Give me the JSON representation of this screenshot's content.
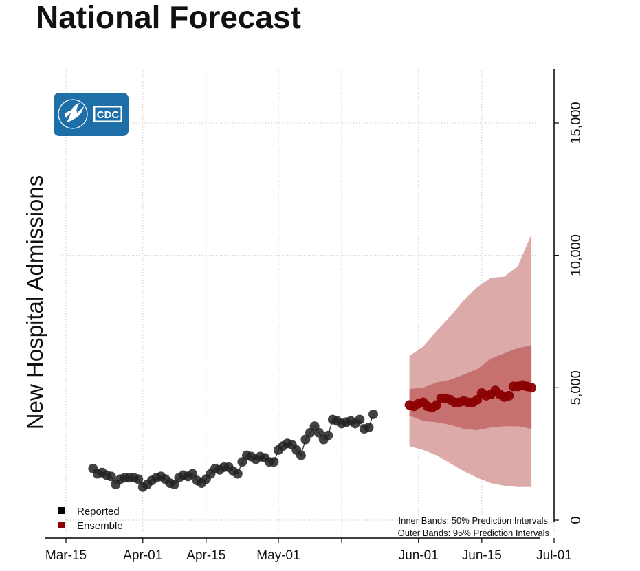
{
  "chart_data": {
    "type": "line",
    "title": "National Forecast",
    "xlabel": "",
    "ylabel": "New Hospital Admissions",
    "x_ticks": [
      "Mar-15",
      "Apr-01",
      "Apr-15",
      "May-01",
      "Jun-01",
      "Jun-15",
      "Jul-01"
    ],
    "y_ticks": [
      "0",
      "5,000",
      "10,000",
      "15,000"
    ],
    "y_axis_position": "right",
    "ylim": [
      0,
      17000
    ],
    "xlim": [
      "2020-03-15",
      "2020-07-01"
    ],
    "grid": true,
    "legend_placement": "bottom-left",
    "legend": [
      {
        "label": "Reported",
        "color": "#000000"
      },
      {
        "label": "Ensemble",
        "color": "#8b0000"
      }
    ],
    "annotations": [
      "Inner Bands: 50% Prediction Intervals",
      "Outer Bands: 95% Prediction Intervals"
    ],
    "logo_text": "CDC",
    "series": [
      {
        "name": "Reported",
        "color": "#000000",
        "x": [
          "2020-03-21",
          "2020-03-22",
          "2020-03-23",
          "2020-03-24",
          "2020-03-25",
          "2020-03-26",
          "2020-03-27",
          "2020-03-28",
          "2020-03-29",
          "2020-03-30",
          "2020-03-31",
          "2020-04-01",
          "2020-04-02",
          "2020-04-03",
          "2020-04-04",
          "2020-04-05",
          "2020-04-06",
          "2020-04-07",
          "2020-04-08",
          "2020-04-09",
          "2020-04-10",
          "2020-04-11",
          "2020-04-12",
          "2020-04-13",
          "2020-04-14",
          "2020-04-15",
          "2020-04-16",
          "2020-04-17",
          "2020-04-18",
          "2020-04-19",
          "2020-04-20",
          "2020-04-21",
          "2020-04-22",
          "2020-04-23",
          "2020-04-24",
          "2020-04-25",
          "2020-04-26",
          "2020-04-27",
          "2020-04-28",
          "2020-04-29",
          "2020-04-30",
          "2020-05-01",
          "2020-05-02",
          "2020-05-03",
          "2020-05-04",
          "2020-05-05",
          "2020-05-06",
          "2020-05-07",
          "2020-05-08",
          "2020-05-09",
          "2020-05-10",
          "2020-05-11",
          "2020-05-12",
          "2020-05-13",
          "2020-05-14",
          "2020-05-15",
          "2020-05-16",
          "2020-05-17",
          "2020-05-18",
          "2020-05-19",
          "2020-05-20",
          "2020-05-21",
          "2020-05-22"
        ],
        "values": [
          1950,
          1750,
          1800,
          1700,
          1650,
          1350,
          1550,
          1600,
          1600,
          1600,
          1550,
          1250,
          1350,
          1500,
          1600,
          1650,
          1550,
          1400,
          1350,
          1600,
          1700,
          1650,
          1750,
          1500,
          1400,
          1550,
          1750,
          1950,
          1900,
          2000,
          2000,
          1850,
          1750,
          2200,
          2450,
          2400,
          2300,
          2400,
          2350,
          2200,
          2200,
          2650,
          2800,
          2900,
          2850,
          2650,
          2450,
          3050,
          3300,
          3550,
          3300,
          3050,
          3200,
          3800,
          3750,
          3650,
          3700,
          3750,
          3650,
          3800,
          3450,
          3500,
          4000
        ]
      },
      {
        "name": "Ensemble",
        "color": "#8b0000",
        "x": [
          "2020-05-30",
          "2020-05-31",
          "2020-06-01",
          "2020-06-02",
          "2020-06-03",
          "2020-06-04",
          "2020-06-05",
          "2020-06-06",
          "2020-06-07",
          "2020-06-08",
          "2020-06-09",
          "2020-06-10",
          "2020-06-11",
          "2020-06-12",
          "2020-06-13",
          "2020-06-14",
          "2020-06-15",
          "2020-06-16",
          "2020-06-17",
          "2020-06-18",
          "2020-06-19",
          "2020-06-20",
          "2020-06-21",
          "2020-06-22",
          "2020-06-23",
          "2020-06-24",
          "2020-06-25",
          "2020-06-26"
        ],
        "values": [
          4350,
          4300,
          4400,
          4450,
          4300,
          4250,
          4350,
          4600,
          4600,
          4550,
          4450,
          4450,
          4500,
          4450,
          4450,
          4550,
          4800,
          4700,
          4750,
          4900,
          4750,
          4650,
          4700,
          5050,
          5050,
          5100,
          5050,
          5000
        ]
      }
    ],
    "intervals": {
      "x": [
        "2020-05-30",
        "2020-06-02",
        "2020-06-05",
        "2020-06-08",
        "2020-06-11",
        "2020-06-14",
        "2020-06-17",
        "2020-06-20",
        "2020-06-23",
        "2020-06-26"
      ],
      "p50_lower": [
        3950,
        3750,
        3700,
        3600,
        3450,
        3400,
        3500,
        3550,
        3550,
        3450
      ],
      "p50_upper": [
        4950,
        5000,
        5200,
        5300,
        5500,
        5700,
        6100,
        6300,
        6500,
        6600
      ],
      "p95_lower": [
        2800,
        2650,
        2450,
        2150,
        1850,
        1600,
        1400,
        1300,
        1250,
        1250
      ],
      "p95_upper": [
        6200,
        6550,
        7150,
        7700,
        8300,
        8800,
        9150,
        9200,
        9600,
        10800
      ]
    }
  }
}
